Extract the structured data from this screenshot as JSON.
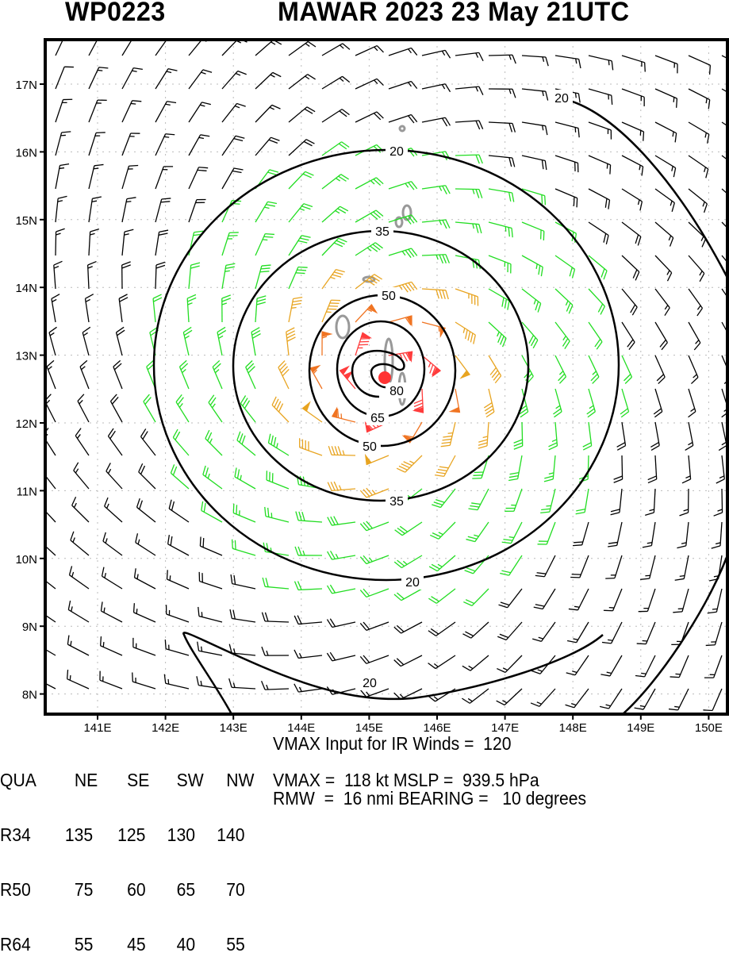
{
  "header": {
    "storm_id": "WP0223",
    "title": "MAWAR 2023 23 May 21UTC"
  },
  "map": {
    "lon_labels": [
      "141E",
      "142E",
      "143E",
      "144E",
      "145E",
      "146E",
      "147E",
      "148E",
      "149E",
      "150E"
    ],
    "lat_labels": [
      "17N",
      "16N",
      "15N",
      "14N",
      "13N",
      "12N",
      "11N",
      "10N",
      "9N",
      "8N"
    ],
    "contour_labels": [
      "20",
      "20",
      "20",
      "20",
      "35",
      "35",
      "50",
      "50",
      "65",
      "80"
    ],
    "colors": {
      "lt20": "#000000",
      "c20": "#22dd22",
      "c35": "#e8a420",
      "c50": "#f07422",
      "c65": "#ff3c3c",
      "center": "#ff3333",
      "land": "#999999"
    }
  },
  "table": {
    "header": [
      "QUA",
      "NE",
      "SE",
      "SW",
      "NW"
    ],
    "rows": [
      [
        "R34",
        "135",
        "125",
        "130",
        "140"
      ],
      [
        "R50",
        "75",
        "60",
        "65",
        "70"
      ],
      [
        "R64",
        "55",
        "45",
        "40",
        "55"
      ]
    ]
  },
  "stats": {
    "vmax_input": "VMAX Input for IR Winds =  120",
    "vmax_mslp": "VMAX =  118 kt MSLP =  939.5 hPa",
    "rmw_bearing": "RMW  =  16 nmi BEARING =   10 degrees"
  }
}
